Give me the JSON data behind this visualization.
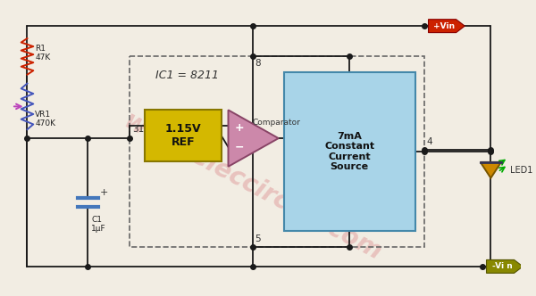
{
  "bg_color": "#f2ede3",
  "wire_color": "#1a1a1a",
  "watermark": "www.eleccircuit.com",
  "vcc_label": "+Vin",
  "vss_label": "-Vi n",
  "ic_label": "IC1 = 8211",
  "comparator_label": "Comparator",
  "ref_label": "1.15V\nREF",
  "current_source_label": "7mA\nConstant\nCurrent\nSource",
  "r1_label": "R1\n47K",
  "vr1_label": "VR1\n470K",
  "c1_label": "C1\n1μF",
  "led_label": "LED1",
  "pin3": "31",
  "pin4": "4",
  "pin5": "5",
  "pin8": "8",
  "ref_box_color": "#d4b800",
  "current_source_box_color": "#a8d4e8",
  "r1_color": "#cc2200",
  "vr1_color": "#4455bb",
  "led_color": "#cc8800",
  "comp_color": "#cc88aa",
  "vcc_tag_color": "#cc2200",
  "vss_tag_color": "#888800",
  "green_ray_color": "#00aa00"
}
